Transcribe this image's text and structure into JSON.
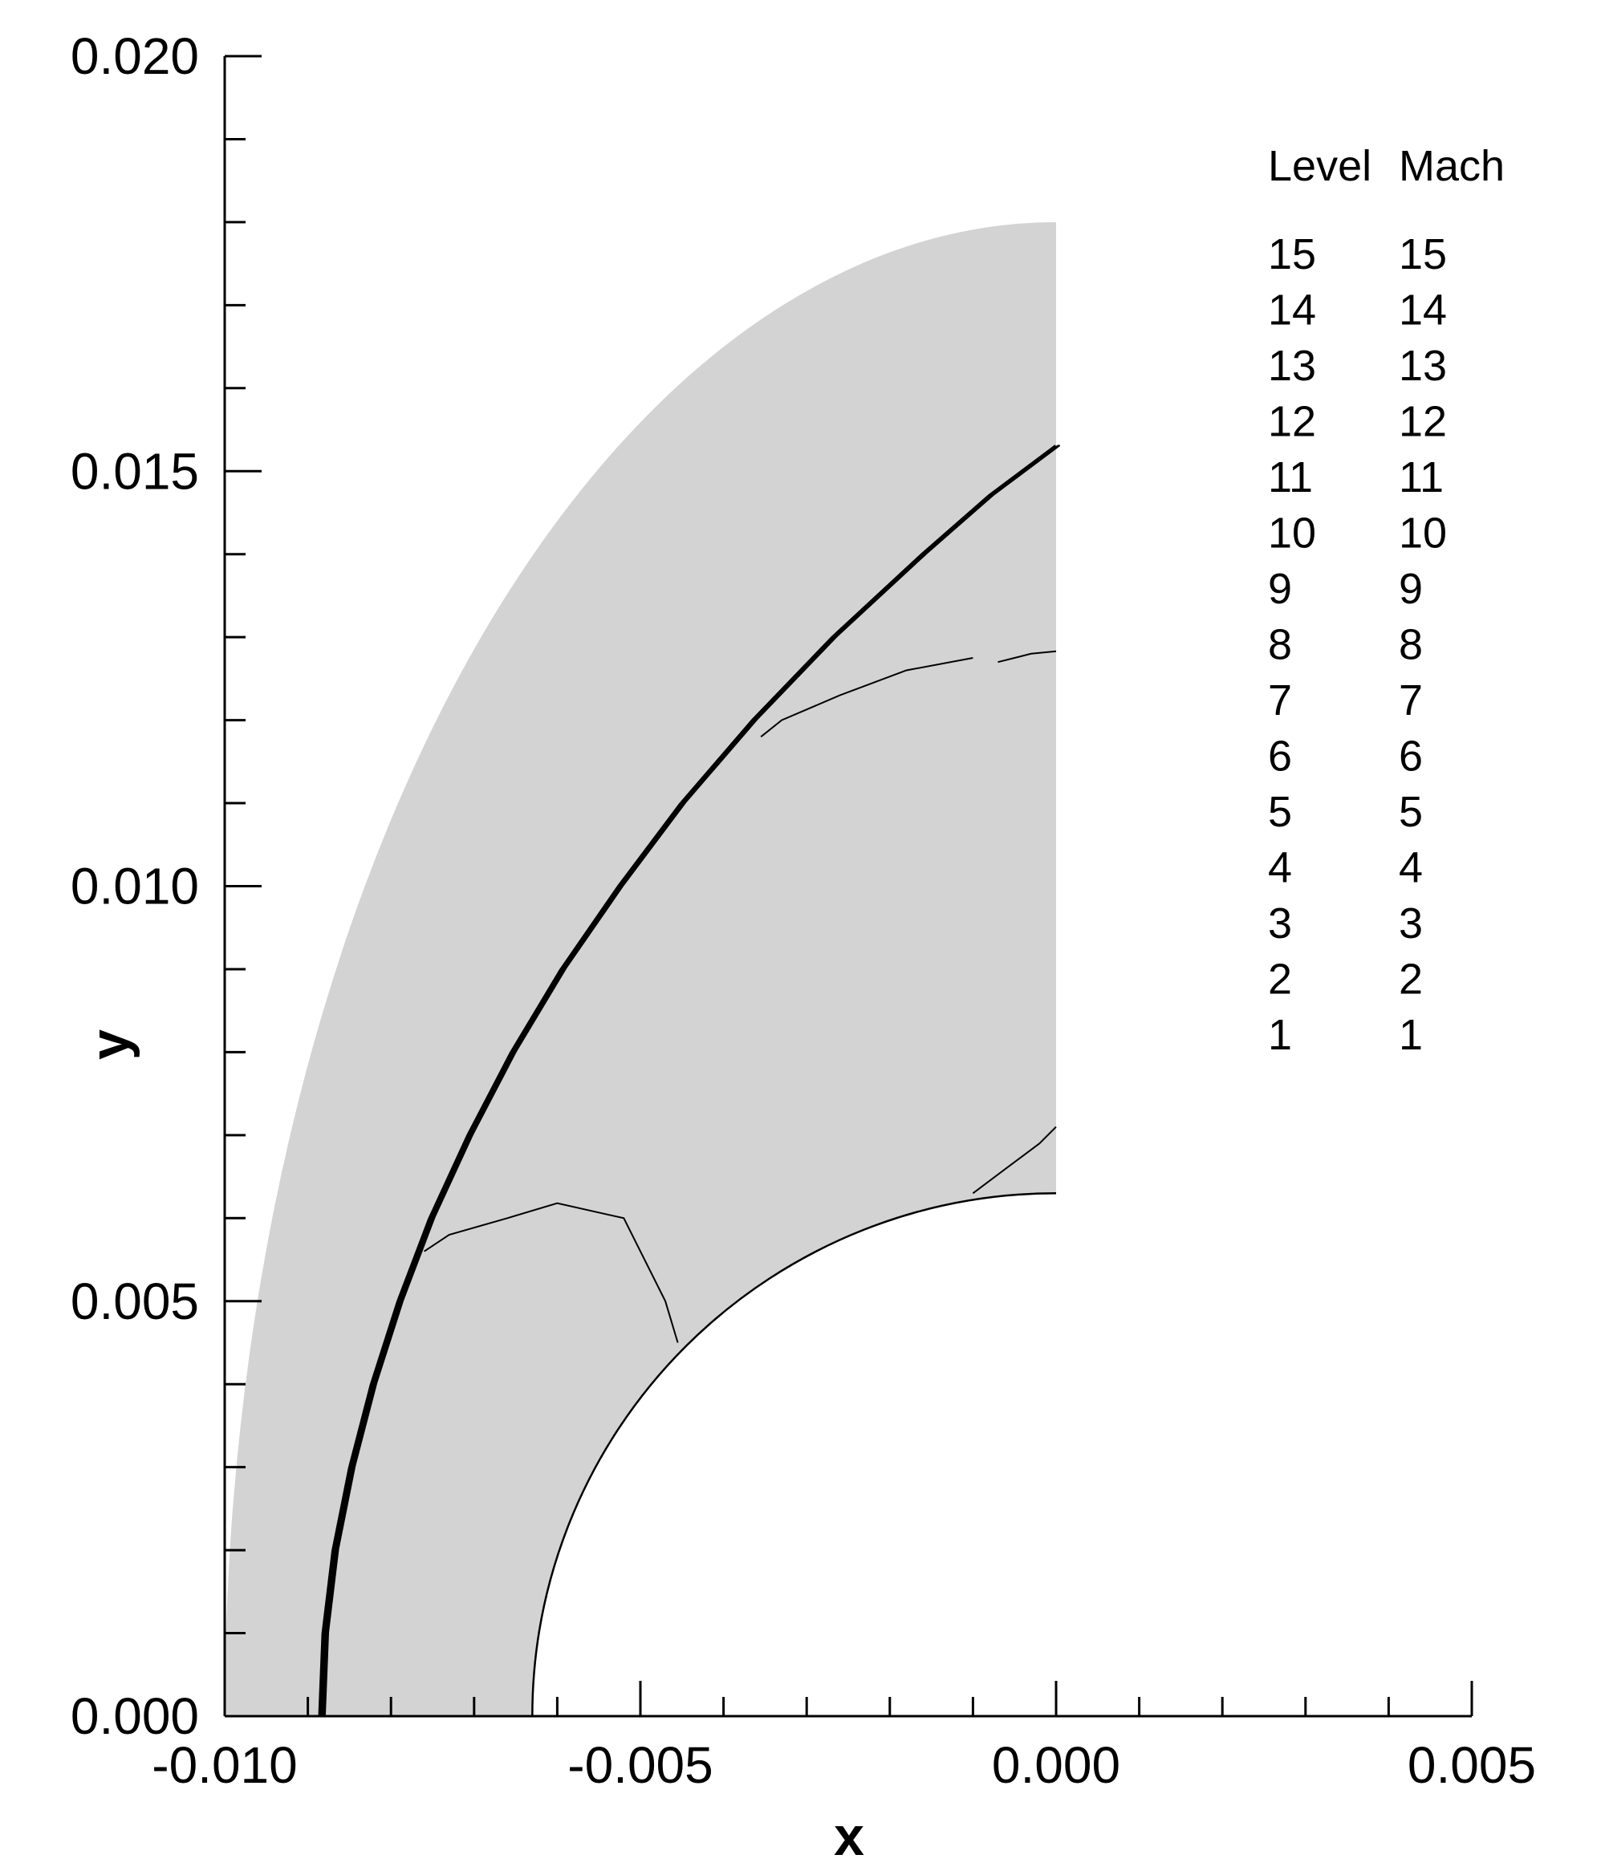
{
  "chart_data": {
    "type": "contour",
    "xlabel": "x",
    "ylabel": "y",
    "xlim": [
      -0.01,
      0.005
    ],
    "ylim": [
      0.0,
      0.02
    ],
    "x_ticks": [
      "-0.010",
      "-0.005",
      "0.000",
      "0.005"
    ],
    "y_ticks": [
      "0.000",
      "0.005",
      "0.010",
      "0.015",
      "0.020"
    ],
    "grid": false,
    "colors": {
      "domain_fill": "#d3d3d3",
      "line": "#000000",
      "background": "#ffffff"
    },
    "geometry": {
      "body_radius": 0.0063,
      "outer_boundary_x_intercept": -0.01,
      "outer_boundary_y_intercept": 0.018
    },
    "bow_shock": [
      [
        -0.00884,
        0.0
      ],
      [
        -0.0088,
        0.001
      ],
      [
        -0.00868,
        0.002
      ],
      [
        -0.00848,
        0.003
      ],
      [
        -0.00822,
        0.004
      ],
      [
        -0.0079,
        0.005
      ],
      [
        -0.00752,
        0.006
      ],
      [
        -0.00706,
        0.007
      ],
      [
        -0.00654,
        0.008
      ],
      [
        -0.00594,
        0.009
      ],
      [
        -0.00525,
        0.01
      ],
      [
        -0.0045,
        0.011
      ],
      [
        -0.00364,
        0.012
      ],
      [
        -0.00268,
        0.013
      ],
      [
        -0.0016,
        0.014
      ],
      [
        -0.0008,
        0.0147
      ],
      [
        0.0,
        0.0153
      ]
    ],
    "contour_lines": [
      {
        "points": [
          [
            -0.0076,
            0.0056
          ],
          [
            -0.0073,
            0.0058
          ],
          [
            -0.0066,
            0.006
          ],
          [
            -0.006,
            0.00618
          ],
          [
            -0.0052,
            0.006
          ],
          [
            -0.0047,
            0.005
          ],
          [
            -0.00455,
            0.0045
          ]
        ]
      },
      {
        "points": [
          [
            -0.00355,
            0.0118
          ],
          [
            -0.0033,
            0.012
          ],
          [
            -0.0026,
            0.0123
          ],
          [
            -0.0018,
            0.0126
          ],
          [
            -0.001,
            0.01275
          ]
        ]
      },
      {
        "points": [
          [
            -0.0007,
            0.0127
          ],
          [
            -0.0003,
            0.0128
          ],
          [
            0.0,
            0.01283
          ]
        ]
      },
      {
        "points": [
          [
            -0.001,
            0.0063
          ],
          [
            -0.0006,
            0.0066
          ],
          [
            -0.0002,
            0.0069
          ],
          [
            0.0,
            0.0071
          ]
        ]
      }
    ],
    "legend": {
      "position": "top-right",
      "headers": [
        "Level",
        "Mach"
      ],
      "rows": [
        [
          "15",
          "15"
        ],
        [
          "14",
          "14"
        ],
        [
          "13",
          "13"
        ],
        [
          "12",
          "12"
        ],
        [
          "11",
          "11"
        ],
        [
          "10",
          "10"
        ],
        [
          "9",
          "9"
        ],
        [
          "8",
          "8"
        ],
        [
          "7",
          "7"
        ],
        [
          "6",
          "6"
        ],
        [
          "5",
          "5"
        ],
        [
          "4",
          "4"
        ],
        [
          "3",
          "3"
        ],
        [
          "2",
          "2"
        ],
        [
          "1",
          "1"
        ]
      ]
    }
  }
}
